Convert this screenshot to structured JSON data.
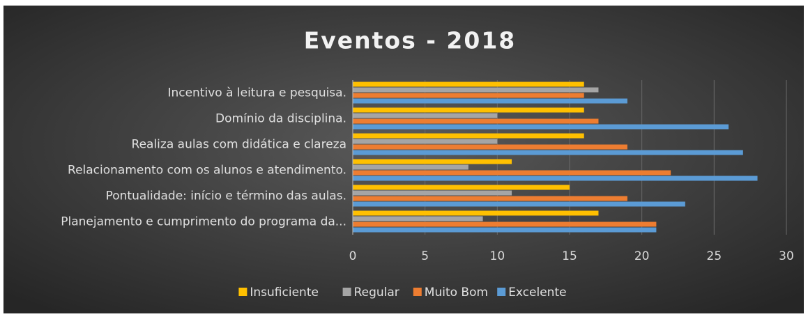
{
  "chart_data": {
    "type": "hbar",
    "title": "Eventos - 2018",
    "categories": [
      "Incentivo à leitura e pesquisa.",
      "Domínio da disciplina.",
      "Realiza aulas com didática e clareza",
      "Relacionamento com os alunos e atendimento.",
      "Pontualidade: início e término das aulas.",
      "Planejamento e cumprimento do programa da..."
    ],
    "series": [
      {
        "name": "Insuficiente",
        "color": "#ffc000",
        "values": [
          16,
          16,
          16,
          11,
          15,
          17
        ]
      },
      {
        "name": "Regular",
        "color": "#a5a5a5",
        "values": [
          17,
          10,
          10,
          8,
          11,
          9
        ]
      },
      {
        "name": "Muito Bom",
        "color": "#ed7d31",
        "values": [
          16,
          17,
          19,
          22,
          19,
          21
        ]
      },
      {
        "name": "Excelente",
        "color": "#5b9bd5",
        "values": [
          19,
          26,
          27,
          28,
          23,
          21
        ]
      }
    ],
    "xlim": [
      0,
      30
    ],
    "xticks": [
      0,
      5,
      10,
      15,
      20,
      25,
      30
    ],
    "grid": true,
    "legend": "bottom"
  }
}
